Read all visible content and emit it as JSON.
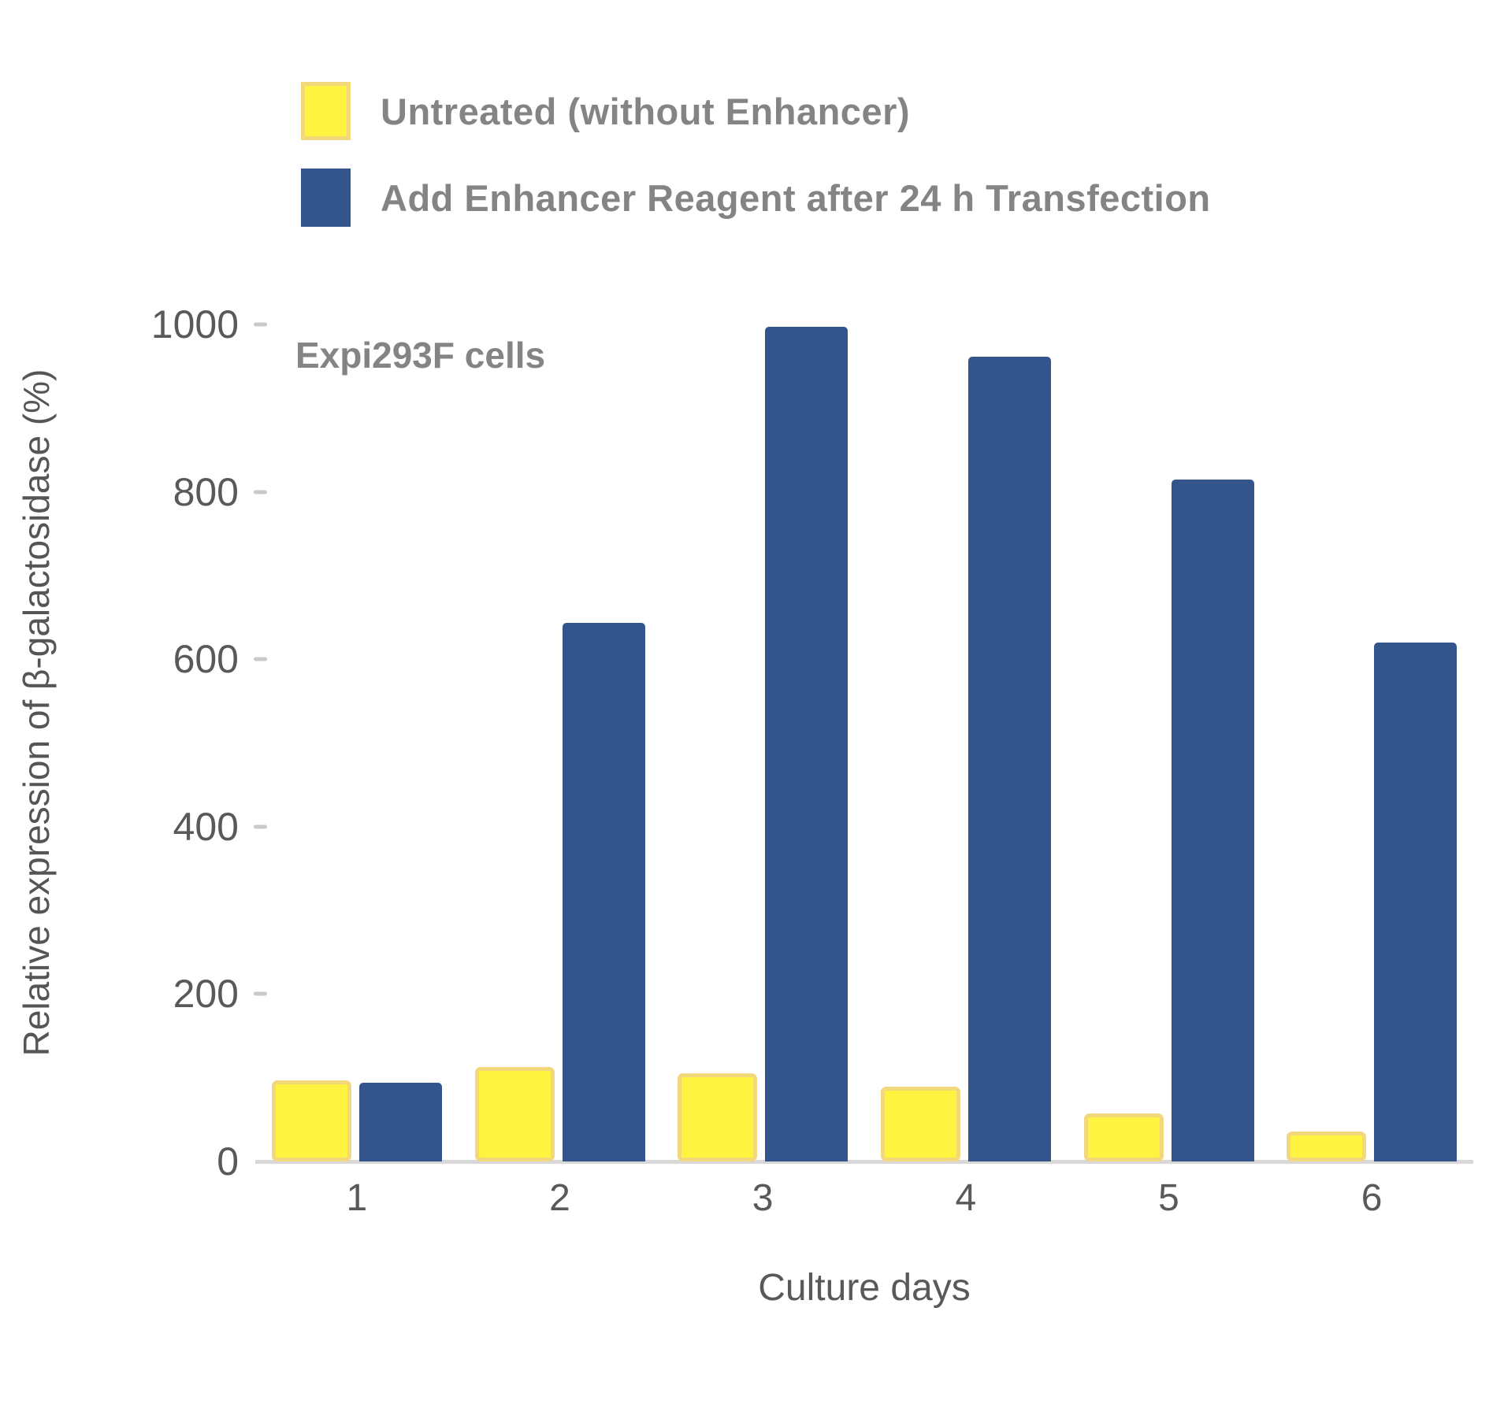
{
  "chart_data": {
    "type": "bar",
    "annotation": "Expi293F cells",
    "categories": [
      "1",
      "2",
      "3",
      "4",
      "5",
      "6"
    ],
    "series": [
      {
        "name": "Untreated (without Enhancer)",
        "values": [
          97,
          113,
          105,
          89,
          57,
          36
        ],
        "color": "#fef440",
        "border_color": "#f3d77c"
      },
      {
        "name": "Add Enhancer Reagent after 24 h Transfection",
        "values": [
          94,
          643,
          997,
          961,
          815,
          620
        ],
        "color": "#33558c",
        "border_color": null
      }
    ],
    "xlabel": "Culture days",
    "ylabel": "Relative expression of β-galactosidase (%)",
    "ylim": [
      0,
      1000
    ],
    "yticks": [
      0,
      200,
      400,
      600,
      800,
      1000
    ],
    "grid": false,
    "legend_position": "top-left",
    "background_color": "#ffffff",
    "axis_line_color": "#d8d8d8",
    "tick_dash_color": "#c9c9c9",
    "axis_text_color": "#595959",
    "legend_text_color": "#848484"
  }
}
